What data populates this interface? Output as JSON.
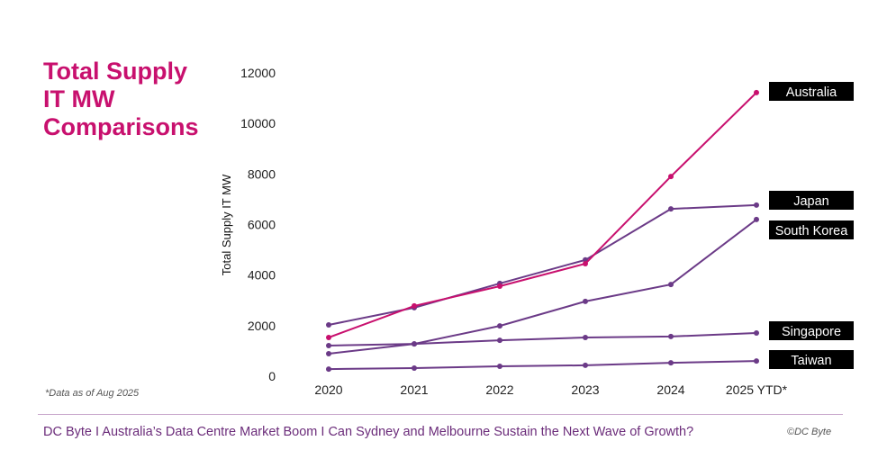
{
  "title": "Total Supply IT MW Comparisons",
  "title_lines": [
    "Total Supply",
    "IT MW",
    "Comparisons"
  ],
  "note": "*Data as of Aug 2025",
  "footer": {
    "part1": "DC Byte I Australia’s Data Centre Market Boom I",
    "part2": "Can Sydney and Melbourne Sustain the Next Wave of Growth?",
    "copyright": "©DC Byte"
  },
  "colors": {
    "accent": "#c8106e",
    "series_purple": "#6b3a87",
    "legend_bg": "#000000"
  },
  "chart_data": {
    "type": "line",
    "title": "Total Supply IT MW Comparisons",
    "xlabel": "",
    "ylabel": "Total Supply IT MW",
    "ylim": [
      0,
      12000
    ],
    "yticks": [
      "0",
      "2000",
      "4000",
      "6000",
      "8000",
      "10000",
      "12000"
    ],
    "categories": [
      "2020",
      "2021",
      "2022",
      "2023",
      "2024",
      "2025 YTD*"
    ],
    "grid": false,
    "legend": "right, labels at line ends",
    "series": [
      {
        "name": "Australia",
        "color": "#c8106e",
        "values": [
          1530,
          2780,
          3560,
          4450,
          7900,
          11220
        ]
      },
      {
        "name": "Japan",
        "color": "#6b3a87",
        "values": [
          2030,
          2710,
          3670,
          4600,
          6620,
          6770
        ]
      },
      {
        "name": "South Korea",
        "color": "#6b3a87",
        "values": [
          890,
          1280,
          1990,
          2960,
          3630,
          6200
        ]
      },
      {
        "name": "Singapore",
        "color": "#6b3a87",
        "values": [
          1210,
          1280,
          1420,
          1530,
          1570,
          1710
        ]
      },
      {
        "name": "Taiwan",
        "color": "#6b3a87",
        "values": [
          280,
          320,
          390,
          430,
          530,
          600
        ]
      }
    ]
  }
}
